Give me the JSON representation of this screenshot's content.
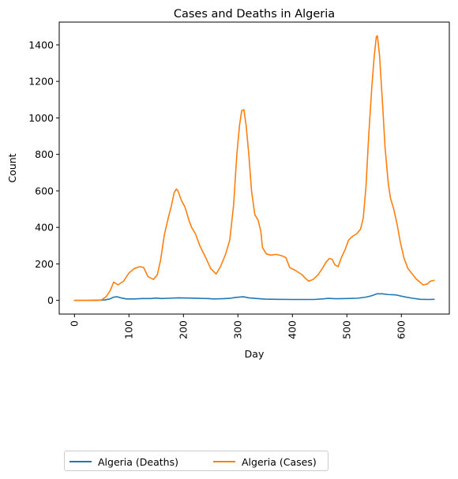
{
  "chart_data": {
    "type": "line",
    "title": "Cases and Deaths in Algeria",
    "xlabel": "Day",
    "ylabel": "Count",
    "xlim": [
      -28,
      688
    ],
    "ylim": [
      -75,
      1525
    ],
    "xticks": [
      "0",
      "100",
      "200",
      "300",
      "400",
      "500",
      "600"
    ],
    "yticks": [
      "0",
      "200",
      "400",
      "600",
      "800",
      "1000",
      "1200",
      "1400"
    ],
    "grid": false,
    "legend_position": "below plot, left",
    "series": [
      {
        "name": "Algeria (Deaths)",
        "color": "#1f77b4",
        "points": [
          [
            0,
            0
          ],
          [
            20,
            0
          ],
          [
            40,
            1
          ],
          [
            55,
            2
          ],
          [
            65,
            8
          ],
          [
            72,
            18
          ],
          [
            78,
            20
          ],
          [
            85,
            14
          ],
          [
            95,
            8
          ],
          [
            110,
            8
          ],
          [
            125,
            10
          ],
          [
            140,
            10
          ],
          [
            150,
            13
          ],
          [
            160,
            10
          ],
          [
            175,
            12
          ],
          [
            190,
            14
          ],
          [
            210,
            13
          ],
          [
            230,
            11
          ],
          [
            245,
            10
          ],
          [
            255,
            8
          ],
          [
            270,
            9
          ],
          [
            285,
            11
          ],
          [
            295,
            16
          ],
          [
            310,
            20
          ],
          [
            320,
            14
          ],
          [
            335,
            10
          ],
          [
            350,
            7
          ],
          [
            370,
            6
          ],
          [
            400,
            5
          ],
          [
            420,
            5
          ],
          [
            440,
            5
          ],
          [
            455,
            8
          ],
          [
            465,
            11
          ],
          [
            480,
            9
          ],
          [
            500,
            10
          ],
          [
            520,
            12
          ],
          [
            535,
            18
          ],
          [
            545,
            25
          ],
          [
            555,
            36
          ],
          [
            565,
            36
          ],
          [
            575,
            32
          ],
          [
            590,
            30
          ],
          [
            605,
            20
          ],
          [
            620,
            12
          ],
          [
            635,
            6
          ],
          [
            650,
            5
          ],
          [
            660,
            6
          ]
        ]
      },
      {
        "name": "Algeria (Cases)",
        "color": "#ff7f0e",
        "points": [
          [
            0,
            0
          ],
          [
            20,
            0
          ],
          [
            40,
            0
          ],
          [
            50,
            3
          ],
          [
            58,
            20
          ],
          [
            65,
            50
          ],
          [
            72,
            100
          ],
          [
            80,
            85
          ],
          [
            90,
            105
          ],
          [
            100,
            150
          ],
          [
            110,
            175
          ],
          [
            120,
            185
          ],
          [
            127,
            180
          ],
          [
            135,
            130
          ],
          [
            145,
            115
          ],
          [
            152,
            140
          ],
          [
            158,
            220
          ],
          [
            165,
            360
          ],
          [
            172,
            450
          ],
          [
            178,
            520
          ],
          [
            183,
            590
          ],
          [
            187,
            610
          ],
          [
            190,
            600
          ],
          [
            196,
            550
          ],
          [
            203,
            510
          ],
          [
            210,
            440
          ],
          [
            215,
            400
          ],
          [
            222,
            365
          ],
          [
            230,
            300
          ],
          [
            240,
            240
          ],
          [
            250,
            175
          ],
          [
            260,
            145
          ],
          [
            268,
            185
          ],
          [
            277,
            250
          ],
          [
            285,
            330
          ],
          [
            292,
            520
          ],
          [
            298,
            800
          ],
          [
            303,
            960
          ],
          [
            307,
            1040
          ],
          [
            311,
            1045
          ],
          [
            315,
            960
          ],
          [
            320,
            800
          ],
          [
            325,
            600
          ],
          [
            331,
            470
          ],
          [
            337,
            440
          ],
          [
            342,
            380
          ],
          [
            345,
            290
          ],
          [
            352,
            255
          ],
          [
            360,
            248
          ],
          [
            370,
            252
          ],
          [
            380,
            245
          ],
          [
            388,
            235
          ],
          [
            395,
            180
          ],
          [
            405,
            165
          ],
          [
            418,
            140
          ],
          [
            424,
            120
          ],
          [
            430,
            105
          ],
          [
            438,
            115
          ],
          [
            447,
            140
          ],
          [
            455,
            175
          ],
          [
            462,
            210
          ],
          [
            468,
            230
          ],
          [
            473,
            225
          ],
          [
            478,
            195
          ],
          [
            484,
            185
          ],
          [
            490,
            235
          ],
          [
            497,
            280
          ],
          [
            503,
            330
          ],
          [
            510,
            350
          ],
          [
            518,
            365
          ],
          [
            525,
            390
          ],
          [
            530,
            450
          ],
          [
            535,
            620
          ],
          [
            540,
            900
          ],
          [
            546,
            1180
          ],
          [
            550,
            1330
          ],
          [
            554,
            1445
          ],
          [
            556,
            1450
          ],
          [
            560,
            1340
          ],
          [
            566,
            1050
          ],
          [
            570,
            840
          ],
          [
            576,
            640
          ],
          [
            580,
            560
          ],
          [
            586,
            500
          ],
          [
            592,
            420
          ],
          [
            598,
            320
          ],
          [
            605,
            230
          ],
          [
            612,
            175
          ],
          [
            620,
            145
          ],
          [
            627,
            118
          ],
          [
            634,
            100
          ],
          [
            640,
            85
          ],
          [
            648,
            90
          ],
          [
            653,
            105
          ],
          [
            660,
            110
          ]
        ]
      }
    ]
  }
}
